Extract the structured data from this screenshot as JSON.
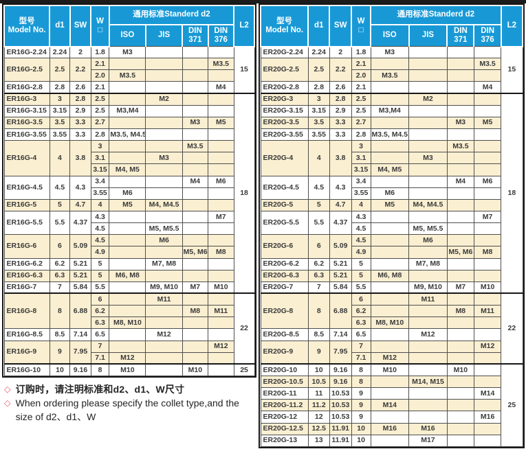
{
  "colors": {
    "header_blue": "#1899d6",
    "row_beige": "#faefd1",
    "diamond_red": "#e2606e",
    "border_dark": "#161616"
  },
  "header_labels": {
    "model_zh": "型号",
    "model_en": "Model No.",
    "d1": "d1",
    "sw": "SW",
    "w_line1": "W",
    "w_line2": "□",
    "standard": "通用标准Standerd  d2",
    "iso": "ISO",
    "jis": "JIS",
    "din": "DIN",
    "din371": "371",
    "din376": "376",
    "l2": "L2"
  },
  "tables": [
    {
      "id": "er16g-table",
      "name": "ER16G",
      "groups": [
        {
          "l2": "15",
          "rows": [
            {
              "model": "ER16G-2.24",
              "d1": "2.24",
              "sw": "2",
              "shade": "white",
              "subs": [
                [
                  "1.8",
                  "M3",
                  "",
                  "",
                  ""
                ]
              ]
            },
            {
              "model": "ER16G-2.5",
              "d1": "2.5",
              "sw": "2.2",
              "shade": "beige",
              "subs": [
                [
                  "2.1",
                  "",
                  "",
                  "",
                  "M3.5"
                ],
                [
                  "2.0",
                  "M3.5",
                  "",
                  "",
                  ""
                ]
              ]
            },
            {
              "model": "ER16G-2.8",
              "d1": "2.8",
              "sw": "2.6",
              "shade": "white",
              "subs": [
                [
                  "2.1",
                  "",
                  "",
                  "",
                  "M4"
                ]
              ]
            }
          ]
        },
        {
          "l2": "18",
          "rows": [
            {
              "model": "ER16G-3",
              "d1": "3",
              "sw": "2.8",
              "shade": "beige",
              "subs": [
                [
                  "2.5",
                  "",
                  "M2",
                  "",
                  ""
                ]
              ]
            },
            {
              "model": "ER16G-3.15",
              "d1": "3.15",
              "sw": "2.9",
              "shade": "white",
              "subs": [
                [
                  "2.5",
                  "M3,M4",
                  "",
                  "",
                  ""
                ]
              ]
            },
            {
              "model": "ER16G-3.5",
              "d1": "3.5",
              "sw": "3.3",
              "shade": "beige",
              "subs": [
                [
                  "2.7",
                  "",
                  "",
                  "M3",
                  "M5"
                ]
              ]
            },
            {
              "model": "ER16G-3.55",
              "d1": "3.55",
              "sw": "3.3",
              "shade": "white",
              "subs": [
                [
                  "2.8",
                  "M3.5, M4.5",
                  "",
                  "",
                  ""
                ]
              ]
            },
            {
              "model": "ER16G-4",
              "d1": "4",
              "sw": "3.8",
              "shade": "beige",
              "subs": [
                [
                  "3",
                  "",
                  "",
                  "M3.5",
                  ""
                ],
                [
                  "3.1",
                  "",
                  "M3",
                  "",
                  ""
                ],
                [
                  "3.15",
                  "M4, M5",
                  "",
                  "",
                  ""
                ]
              ]
            },
            {
              "model": "ER16G-4.5",
              "d1": "4.5",
              "sw": "4.3",
              "shade": "white",
              "subs": [
                [
                  "3.4",
                  "",
                  "",
                  "M4",
                  "M6"
                ],
                [
                  "3.55",
                  "M6",
                  "",
                  "",
                  ""
                ]
              ]
            },
            {
              "model": "ER16G-5",
              "d1": "5",
              "sw": "4.7",
              "shade": "beige",
              "subs": [
                [
                  "4",
                  "M5",
                  "M4, M4.5",
                  "",
                  ""
                ]
              ]
            },
            {
              "model": "ER16G-5.5",
              "d1": "5.5",
              "sw": "4.37",
              "shade": "white",
              "subs": [
                [
                  "4.3",
                  "",
                  "",
                  "",
                  "M7"
                ],
                [
                  "4.5",
                  "",
                  "M5, M5.5",
                  "",
                  ""
                ]
              ]
            },
            {
              "model": "ER16G-6",
              "d1": "6",
              "sw": "5.09",
              "shade": "beige",
              "subs": [
                [
                  "4.5",
                  "",
                  "M6",
                  "",
                  ""
                ],
                [
                  "4.9",
                  "",
                  "",
                  "M5, M6",
                  "M8"
                ]
              ]
            },
            {
              "model": "ER16G-6.2",
              "d1": "6.2",
              "sw": "5.21",
              "shade": "white",
              "subs": [
                [
                  "5",
                  "",
                  "M7, M8",
                  "",
                  ""
                ]
              ]
            },
            {
              "model": "ER16G-6.3",
              "d1": "6.3",
              "sw": "5.21",
              "shade": "beige",
              "subs": [
                [
                  "5",
                  "M6, M8",
                  "",
                  "",
                  ""
                ]
              ]
            },
            {
              "model": "ER16G-7",
              "d1": "7",
              "sw": "5.84",
              "shade": "white",
              "subs": [
                [
                  "5.5",
                  "",
                  "M9, M10",
                  "M7",
                  "M10"
                ]
              ]
            }
          ]
        },
        {
          "l2": "22",
          "rows": [
            {
              "model": "ER16G-8",
              "d1": "8",
              "sw": "6.88",
              "shade": "beige",
              "subs": [
                [
                  "6",
                  "",
                  "M11",
                  "",
                  ""
                ],
                [
                  "6.2",
                  "",
                  "",
                  "M8",
                  "M11"
                ],
                [
                  "6.3",
                  "M8, M10",
                  "",
                  "",
                  ""
                ]
              ]
            },
            {
              "model": "ER16G-8.5",
              "d1": "8.5",
              "sw": "7.14",
              "shade": "white",
              "subs": [
                [
                  "6.5",
                  "",
                  "M12",
                  "",
                  ""
                ]
              ]
            },
            {
              "model": "ER16G-9",
              "d1": "9",
              "sw": "7.95",
              "shade": "beige",
              "subs": [
                [
                  "7",
                  "",
                  "",
                  "",
                  "M12"
                ],
                [
                  "7.1",
                  "M12",
                  "",
                  "",
                  ""
                ]
              ]
            }
          ]
        },
        {
          "l2": "25",
          "rows": [
            {
              "model": "ER16G-10",
              "d1": "10",
              "sw": "9.16",
              "shade": "white",
              "subs": [
                [
                  "8",
                  "M10",
                  "",
                  "M10",
                  ""
                ]
              ]
            }
          ]
        }
      ]
    },
    {
      "id": "er20g-table",
      "name": "ER20G",
      "groups": [
        {
          "l2": "15",
          "rows": [
            {
              "model": "ER20G-2.24",
              "d1": "2.24",
              "sw": "2",
              "shade": "white",
              "subs": [
                [
                  "1.8",
                  "M3",
                  "",
                  "",
                  ""
                ]
              ]
            },
            {
              "model": "ER20G-2.5",
              "d1": "2.5",
              "sw": "2.2",
              "shade": "beige",
              "subs": [
                [
                  "2.1",
                  "",
                  "",
                  "",
                  "M3.5"
                ],
                [
                  "2.0",
                  "M3.5",
                  "",
                  "",
                  ""
                ]
              ]
            },
            {
              "model": "ER20G-2.8",
              "d1": "2.8",
              "sw": "2.6",
              "shade": "white",
              "subs": [
                [
                  "2.1",
                  "",
                  "",
                  "",
                  "M4"
                ]
              ]
            }
          ]
        },
        {
          "l2": "18",
          "rows": [
            {
              "model": "ER20G-3",
              "d1": "3",
              "sw": "2.8",
              "shade": "beige",
              "subs": [
                [
                  "2.5",
                  "",
                  "M2",
                  "",
                  ""
                ]
              ]
            },
            {
              "model": "ER20G-3.15",
              "d1": "3.15",
              "sw": "2.9",
              "shade": "white",
              "subs": [
                [
                  "2.5",
                  "M3,M4",
                  "",
                  "",
                  ""
                ]
              ]
            },
            {
              "model": "ER20G-3.5",
              "d1": "3.5",
              "sw": "3.3",
              "shade": "beige",
              "subs": [
                [
                  "2.7",
                  "",
                  "",
                  "M3",
                  "M5"
                ]
              ]
            },
            {
              "model": "ER20G-3.55",
              "d1": "3.55",
              "sw": "3.3",
              "shade": "white",
              "subs": [
                [
                  "2.8",
                  "M3.5, M4.5",
                  "",
                  "",
                  ""
                ]
              ]
            },
            {
              "model": "ER20G-4",
              "d1": "4",
              "sw": "3.8",
              "shade": "beige",
              "subs": [
                [
                  "3",
                  "",
                  "",
                  "M3.5",
                  ""
                ],
                [
                  "3.1",
                  "",
                  "M3",
                  "",
                  ""
                ],
                [
                  "3.15",
                  "M4, M5",
                  "",
                  "",
                  ""
                ]
              ]
            },
            {
              "model": "ER20G-4.5",
              "d1": "4.5",
              "sw": "4.3",
              "shade": "white",
              "subs": [
                [
                  "3.4",
                  "",
                  "",
                  "M4",
                  "M6"
                ],
                [
                  "3.55",
                  "M6",
                  "",
                  "",
                  ""
                ]
              ]
            },
            {
              "model": "ER20G-5",
              "d1": "5",
              "sw": "4.7",
              "shade": "beige",
              "subs": [
                [
                  "4",
                  "M5",
                  "M4, M4.5",
                  "",
                  ""
                ]
              ]
            },
            {
              "model": "ER20G-5.5",
              "d1": "5.5",
              "sw": "4.37",
              "shade": "white",
              "subs": [
                [
                  "4.3",
                  "",
                  "",
                  "",
                  "M7"
                ],
                [
                  "4.5",
                  "",
                  "M5, M5.5",
                  "",
                  ""
                ]
              ]
            },
            {
              "model": "ER20G-6",
              "d1": "6",
              "sw": "5.09",
              "shade": "beige",
              "subs": [
                [
                  "4.5",
                  "",
                  "M6",
                  "",
                  ""
                ],
                [
                  "4.9",
                  "",
                  "",
                  "M5, M6",
                  "M8"
                ]
              ]
            },
            {
              "model": "ER20G-6.2",
              "d1": "6.2",
              "sw": "5.21",
              "shade": "white",
              "subs": [
                [
                  "5",
                  "",
                  "M7, M8",
                  "",
                  ""
                ]
              ]
            },
            {
              "model": "ER20G-6.3",
              "d1": "6.3",
              "sw": "5.21",
              "shade": "beige",
              "subs": [
                [
                  "5",
                  "M6, M8",
                  "",
                  "",
                  ""
                ]
              ]
            },
            {
              "model": "ER20G-7",
              "d1": "7",
              "sw": "5.84",
              "shade": "white",
              "subs": [
                [
                  "5.5",
                  "",
                  "M9, M10",
                  "M7",
                  "M10"
                ]
              ]
            }
          ]
        },
        {
          "l2": "22",
          "rows": [
            {
              "model": "ER20G-8",
              "d1": "8",
              "sw": "6.88",
              "shade": "beige",
              "subs": [
                [
                  "6",
                  "",
                  "M11",
                  "",
                  ""
                ],
                [
                  "6.2",
                  "",
                  "",
                  "M8",
                  "M11"
                ],
                [
                  "6.3",
                  "M8, M10",
                  "",
                  "",
                  ""
                ]
              ]
            },
            {
              "model": "ER20G-8.5",
              "d1": "8.5",
              "sw": "7.14",
              "shade": "white",
              "subs": [
                [
                  "6.5",
                  "",
                  "M12",
                  "",
                  ""
                ]
              ]
            },
            {
              "model": "ER20G-9",
              "d1": "9",
              "sw": "7.95",
              "shade": "beige",
              "subs": [
                [
                  "7",
                  "",
                  "",
                  "",
                  "M12"
                ],
                [
                  "7.1",
                  "M12",
                  "",
                  "",
                  ""
                ]
              ]
            }
          ]
        },
        {
          "l2": "25",
          "rows": [
            {
              "model": "ER20G-10",
              "d1": "10",
              "sw": "9.16",
              "shade": "white",
              "subs": [
                [
                  "8",
                  "M10",
                  "",
                  "M10",
                  ""
                ]
              ]
            },
            {
              "model": "ER20G-10.5",
              "d1": "10.5",
              "sw": "9.16",
              "shade": "beige",
              "subs": [
                [
                  "8",
                  "",
                  "M14, M15",
                  "",
                  ""
                ]
              ]
            },
            {
              "model": "ER20G-11",
              "d1": "11",
              "sw": "10.53",
              "shade": "white",
              "subs": [
                [
                  "9",
                  "",
                  "",
                  "",
                  "M14"
                ]
              ]
            },
            {
              "model": "ER20G-11.2",
              "d1": "11.2",
              "sw": "10.53",
              "shade": "beige",
              "subs": [
                [
                  "9",
                  "M14",
                  "",
                  "",
                  ""
                ]
              ]
            },
            {
              "model": "ER20G-12",
              "d1": "12",
              "sw": "10.53",
              "shade": "white",
              "subs": [
                [
                  "9",
                  "",
                  "",
                  "",
                  "M16"
                ]
              ]
            },
            {
              "model": "ER20G-12.5",
              "d1": "12.5",
              "sw": "11.91",
              "shade": "beige",
              "subs": [
                [
                  "10",
                  "M16",
                  "M16",
                  "",
                  ""
                ]
              ]
            },
            {
              "model": "ER20G-13",
              "d1": "13",
              "sw": "11.91",
              "shade": "white",
              "subs": [
                [
                  "10",
                  "",
                  "M17",
                  "",
                  ""
                ]
              ]
            }
          ]
        }
      ]
    }
  ],
  "notes": [
    {
      "diamond": "◇",
      "text": "订购时，请注明标准和d2、d1、W尺寸",
      "lang": "zh"
    },
    {
      "diamond": "◇",
      "text": "When ordering please specify the collet type,and the size of d2、d1、W",
      "lang": "en"
    }
  ]
}
